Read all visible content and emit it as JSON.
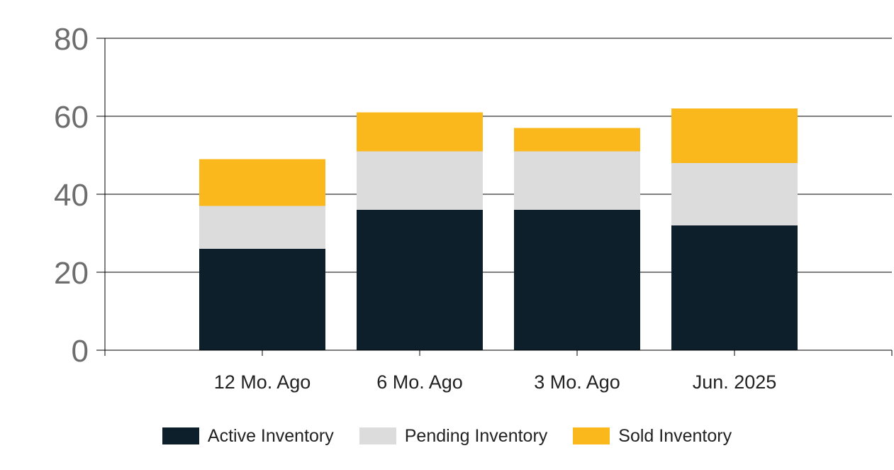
{
  "chart_data": {
    "type": "bar",
    "stacked": true,
    "categories": [
      "12 Mo. Ago",
      "6 Mo. Ago",
      "3 Mo. Ago",
      "Jun. 2025"
    ],
    "series": [
      {
        "name": "Active Inventory",
        "color": "#0d1f2a",
        "values": [
          26,
          36,
          36,
          32
        ]
      },
      {
        "name": "Pending Inventory",
        "color": "#dcdcdc",
        "values": [
          11,
          15,
          15,
          16
        ]
      },
      {
        "name": "Sold Inventory",
        "color": "#fbb81c",
        "values": [
          12,
          10,
          6,
          14
        ]
      }
    ],
    "ylim": [
      0,
      80
    ],
    "yticks": [
      "0",
      "20",
      "40",
      "60",
      "80"
    ],
    "grid": true,
    "legend_position": "bottom"
  }
}
